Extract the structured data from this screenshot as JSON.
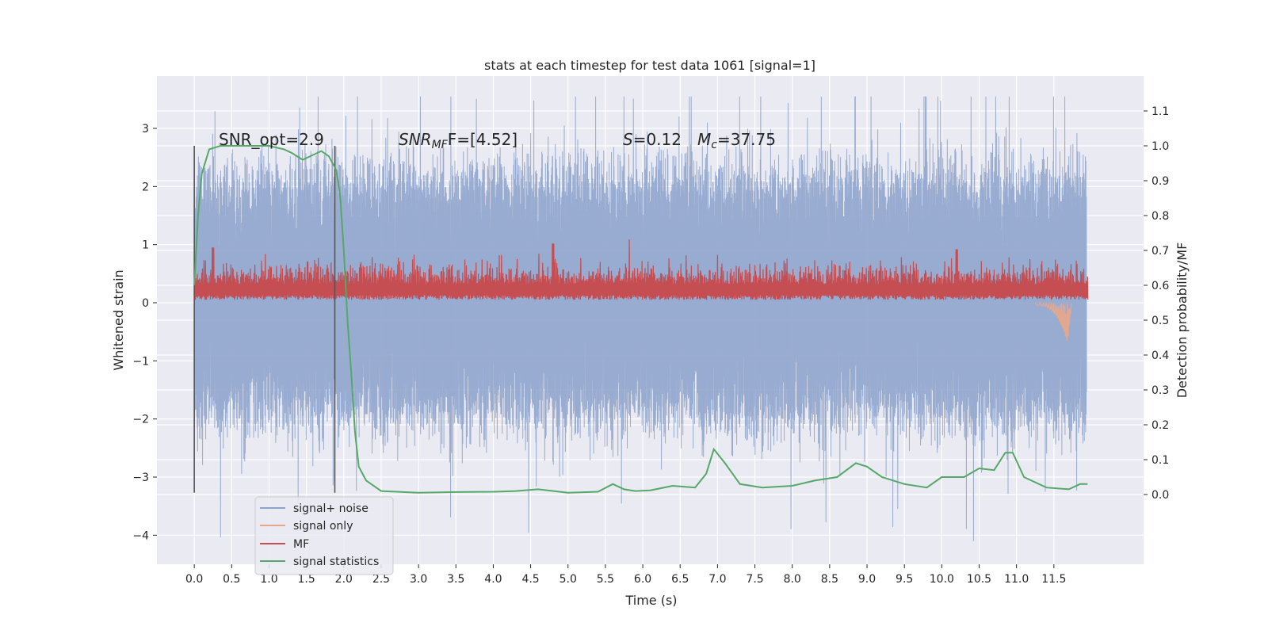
{
  "chart_data": {
    "type": "line",
    "title": "stats at each timestep for test data 1061 [signal=1]",
    "xlabel": "Time (s)",
    "ylabel_left": "Whitened strain",
    "ylabel_right": "Detection probability/MF",
    "xlim": [
      -0.5,
      12.7
    ],
    "ylim_left": [
      -4.5,
      3.9
    ],
    "ylim_right": [
      -0.2,
      1.2
    ],
    "xticks": [
      "0.0",
      "0.5",
      "1.0",
      "1.5",
      "2.0",
      "2.5",
      "3.0",
      "3.5",
      "4.0",
      "4.5",
      "5.0",
      "5.5",
      "6.0",
      "6.5",
      "7.0",
      "7.5",
      "8.0",
      "8.5",
      "9.0",
      "9.5",
      "10.0",
      "10.5",
      "11.0",
      "11.5"
    ],
    "yticks_left": [
      "3",
      "2",
      "1",
      "0",
      "−1",
      "−2",
      "−3",
      "−4"
    ],
    "yticks_right": [
      "1.1",
      "1.0",
      "0.9",
      "0.8",
      "0.7",
      "0.6",
      "0.5",
      "0.4",
      "0.3",
      "0.2",
      "0.1",
      "0.0"
    ],
    "grid": true,
    "background": "#eaeaf2",
    "legend_position": "lower-left",
    "annotations": {
      "snr_opt": "SNR_opt=2.9",
      "snr_mf": "SNR",
      "snr_mf_sub": "MF",
      "snr_mf_val": "F=[4.52]",
      "s_sym": "S",
      "s_val": "=0.12",
      "mc_sym": "M",
      "mc_sub": "c",
      "mc_val": "=37.75"
    },
    "window_markers_x": [
      0.0,
      1.88
    ],
    "series": [
      {
        "name": "signal+ noise",
        "color": "#8fa4cc",
        "axis": "left",
        "envelope_typical": [
          -1.8,
          2.0
        ],
        "min": -4.1,
        "max": 3.55
      },
      {
        "name": "signal only",
        "color": "#e8a68a",
        "axis": "left",
        "values_x": [
          11.3,
          11.45,
          11.55,
          11.62,
          11.65,
          11.68,
          11.72
        ],
        "values_y": [
          0.0,
          -0.05,
          -0.15,
          -0.3,
          -0.65,
          -0.3,
          0.0
        ]
      },
      {
        "name": "MF",
        "color": "#c44e52",
        "axis": "left",
        "baseline": 0.2,
        "typical_range": [
          0.05,
          0.55
        ],
        "peaks": [
          [
            0.25,
            0.95
          ],
          [
            4.8,
            1.02
          ],
          [
            10.2,
            0.92
          ]
        ]
      },
      {
        "name": "signal statistics",
        "color": "#55a868",
        "axis": "right",
        "x": [
          0.0,
          0.05,
          0.1,
          0.2,
          0.35,
          0.5,
          0.8,
          1.0,
          1.2,
          1.3,
          1.45,
          1.6,
          1.7,
          1.8,
          1.9,
          1.95,
          2.0,
          2.05,
          2.1,
          2.15,
          2.2,
          2.3,
          2.5,
          3.0,
          3.5,
          4.0,
          4.3,
          4.6,
          5.0,
          5.4,
          5.6,
          5.75,
          5.9,
          6.1,
          6.4,
          6.7,
          6.85,
          6.95,
          7.1,
          7.3,
          7.6,
          8.0,
          8.3,
          8.6,
          8.85,
          9.0,
          9.2,
          9.5,
          9.8,
          10.0,
          10.3,
          10.5,
          10.7,
          10.85,
          10.95,
          11.1,
          11.4,
          11.7,
          11.85,
          11.95
        ],
        "y": [
          0.6,
          0.8,
          0.92,
          0.99,
          1.0,
          1.0,
          1.0,
          1.0,
          0.99,
          0.98,
          0.96,
          0.975,
          0.985,
          0.97,
          0.93,
          0.86,
          0.7,
          0.5,
          0.35,
          0.18,
          0.08,
          0.04,
          0.01,
          0.005,
          0.007,
          0.008,
          0.01,
          0.015,
          0.005,
          0.008,
          0.03,
          0.015,
          0.01,
          0.012,
          0.025,
          0.02,
          0.06,
          0.13,
          0.09,
          0.03,
          0.02,
          0.025,
          0.04,
          0.05,
          0.09,
          0.08,
          0.05,
          0.03,
          0.02,
          0.05,
          0.05,
          0.075,
          0.07,
          0.12,
          0.12,
          0.05,
          0.02,
          0.015,
          0.03,
          0.03
        ]
      }
    ]
  }
}
